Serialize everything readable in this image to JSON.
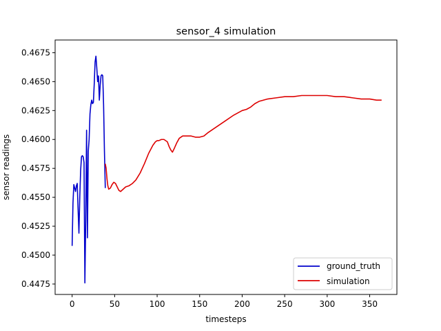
{
  "chart_data": {
    "type": "line",
    "title": "sensor_4 simulation",
    "xlabel": "timesteps",
    "ylabel": "sensor readings",
    "xlim": [
      -20,
      382
    ],
    "ylim": [
      0.4466,
      0.4686
    ],
    "xticks": [
      0,
      50,
      100,
      150,
      200,
      250,
      300,
      350
    ],
    "xtick_labels": [
      "0",
      "50",
      "100",
      "150",
      "200",
      "250",
      "300",
      "350"
    ],
    "yticks": [
      0.4475,
      0.45,
      0.4525,
      0.455,
      0.4575,
      0.46,
      0.4625,
      0.465,
      0.4675
    ],
    "ytick_labels": [
      "0.4475",
      "0.4500",
      "0.4525",
      "0.4550",
      "0.4575",
      "0.4600",
      "0.4625",
      "0.4650",
      "0.4675"
    ],
    "grid": false,
    "legend_position": "lower-right",
    "series": [
      {
        "name": "ground_truth",
        "color": "#0000cc",
        "points": [
          [
            0,
            0.4508
          ],
          [
            1,
            0.4545
          ],
          [
            2,
            0.4561
          ],
          [
            3,
            0.4558
          ],
          [
            4,
            0.4555
          ],
          [
            5,
            0.456
          ],
          [
            6,
            0.4562
          ],
          [
            7,
            0.454
          ],
          [
            8,
            0.4519
          ],
          [
            9,
            0.455
          ],
          [
            10,
            0.4573
          ],
          [
            11,
            0.4585
          ],
          [
            12,
            0.4586
          ],
          [
            13,
            0.4585
          ],
          [
            14,
            0.458
          ],
          [
            15,
            0.4476
          ],
          [
            16,
            0.453
          ],
          [
            17,
            0.4608
          ],
          [
            18,
            0.4515
          ],
          [
            19,
            0.459
          ],
          [
            20,
            0.46
          ],
          [
            21,
            0.4622
          ],
          [
            22,
            0.463
          ],
          [
            23,
            0.4634
          ],
          [
            24,
            0.4631
          ],
          [
            25,
            0.4632
          ],
          [
            26,
            0.4648
          ],
          [
            27,
            0.4667
          ],
          [
            28,
            0.4672
          ],
          [
            29,
            0.4662
          ],
          [
            30,
            0.465
          ],
          [
            31,
            0.4655
          ],
          [
            32,
            0.4634
          ],
          [
            33,
            0.4647
          ],
          [
            34,
            0.4655
          ],
          [
            35,
            0.4656
          ],
          [
            36,
            0.4655
          ],
          [
            37,
            0.463
          ],
          [
            38,
            0.459
          ],
          [
            39,
            0.4558
          ]
        ]
      },
      {
        "name": "simulation",
        "color": "#dd0000",
        "points": [
          [
            39,
            0.4579
          ],
          [
            40,
            0.4575
          ],
          [
            41,
            0.4566
          ],
          [
            42,
            0.456
          ],
          [
            43,
            0.4557
          ],
          [
            45,
            0.4558
          ],
          [
            47,
            0.4561
          ],
          [
            49,
            0.4563
          ],
          [
            51,
            0.4562
          ],
          [
            53,
            0.4559
          ],
          [
            55,
            0.4556
          ],
          [
            57,
            0.4555
          ],
          [
            60,
            0.4557
          ],
          [
            63,
            0.4559
          ],
          [
            67,
            0.456
          ],
          [
            71,
            0.4562
          ],
          [
            75,
            0.4565
          ],
          [
            80,
            0.4571
          ],
          [
            85,
            0.4579
          ],
          [
            90,
            0.4588
          ],
          [
            95,
            0.4595
          ],
          [
            98,
            0.4598
          ],
          [
            100,
            0.4599
          ],
          [
            102,
            0.4599
          ],
          [
            105,
            0.46
          ],
          [
            108,
            0.46
          ],
          [
            112,
            0.4598
          ],
          [
            114,
            0.4594
          ],
          [
            116,
            0.4591
          ],
          [
            118,
            0.4589
          ],
          [
            120,
            0.4592
          ],
          [
            123,
            0.4597
          ],
          [
            126,
            0.4601
          ],
          [
            130,
            0.4603
          ],
          [
            135,
            0.4603
          ],
          [
            140,
            0.4603
          ],
          [
            145,
            0.4602
          ],
          [
            150,
            0.4602
          ],
          [
            155,
            0.4603
          ],
          [
            160,
            0.4606
          ],
          [
            170,
            0.4611
          ],
          [
            180,
            0.4616
          ],
          [
            190,
            0.4621
          ],
          [
            200,
            0.4625
          ],
          [
            205,
            0.4626
          ],
          [
            210,
            0.4628
          ],
          [
            215,
            0.4631
          ],
          [
            220,
            0.4633
          ],
          [
            230,
            0.4635
          ],
          [
            240,
            0.4636
          ],
          [
            250,
            0.4637
          ],
          [
            260,
            0.4637
          ],
          [
            270,
            0.4638
          ],
          [
            280,
            0.4638
          ],
          [
            290,
            0.4638
          ],
          [
            300,
            0.4638
          ],
          [
            310,
            0.4637
          ],
          [
            320,
            0.4637
          ],
          [
            330,
            0.4636
          ],
          [
            340,
            0.4635
          ],
          [
            350,
            0.4635
          ],
          [
            358,
            0.4634
          ],
          [
            364,
            0.4634
          ]
        ]
      }
    ]
  }
}
